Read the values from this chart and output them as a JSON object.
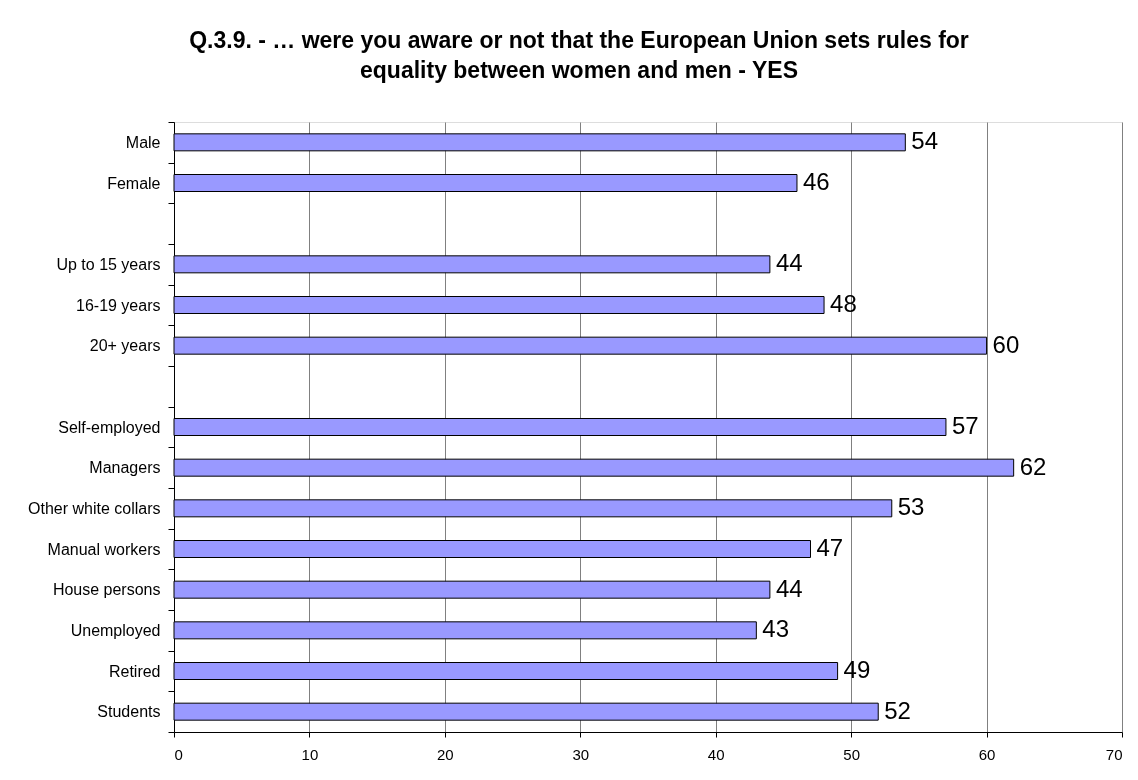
{
  "chart_data": {
    "type": "bar",
    "orientation": "horizontal",
    "title": "Q.3.9.  - … were you aware or not that the European Union sets rules for\nequality between women and men  - YES",
    "categories": [
      "Male",
      "Female",
      null,
      "Up to 15 years",
      "16-19 years",
      "20+ years",
      null,
      "Self-employed",
      "Managers",
      "Other white collars",
      "Manual workers",
      "House persons",
      "Unemployed",
      "Retired",
      "Students"
    ],
    "values": [
      54,
      46,
      null,
      44,
      48,
      60,
      null,
      57,
      62,
      53,
      47,
      44,
      43,
      49,
      52
    ],
    "color": "#9999ff",
    "xlim": [
      0,
      70
    ],
    "xticks": [
      0,
      10,
      20,
      30,
      40,
      50,
      60,
      70
    ],
    "grid": "x",
    "data_labels": true
  }
}
